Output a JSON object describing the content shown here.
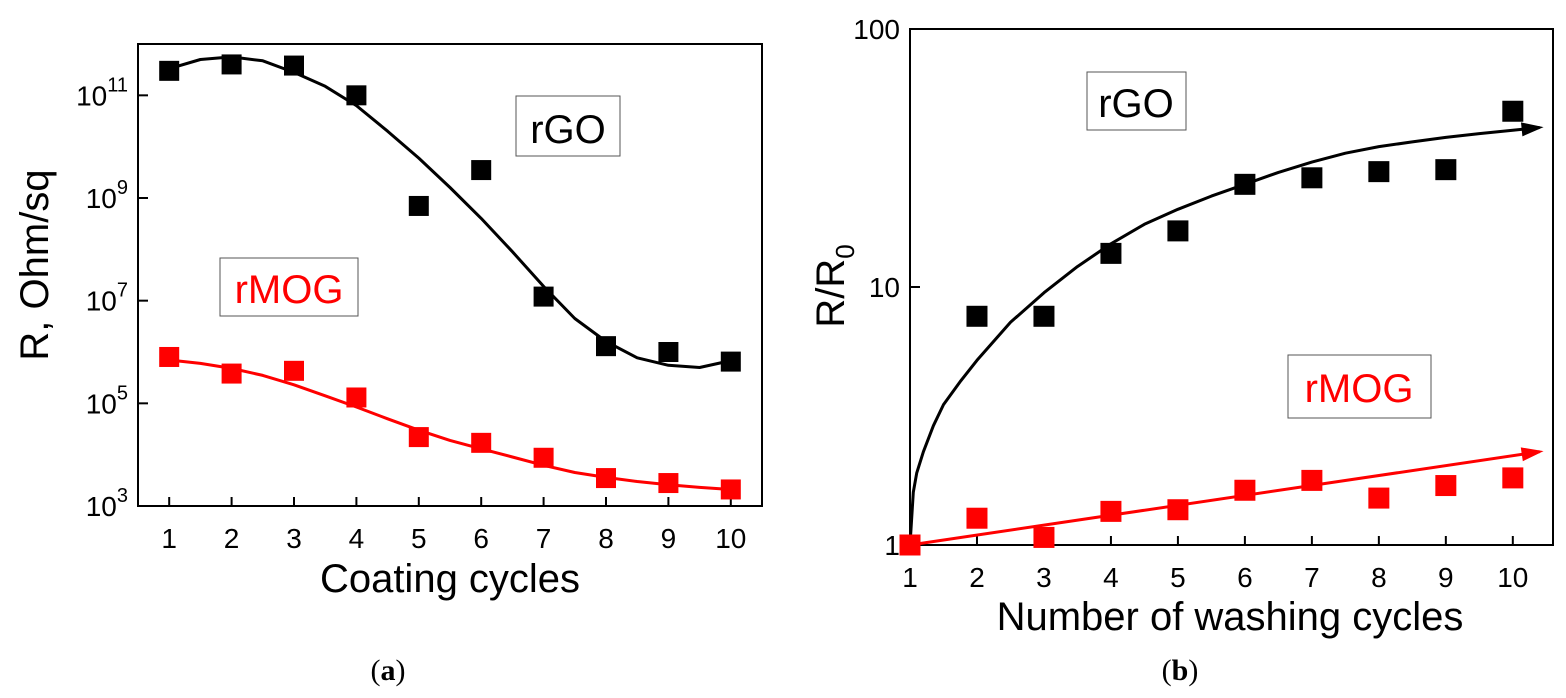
{
  "chart_data": [
    {
      "id": "a",
      "type": "scatter",
      "caption_open": "(",
      "caption_letter": "a",
      "caption_close": ")",
      "xlabel": "Coating cycles",
      "ylabel": "R, Ohm/sq",
      "yscale": "log",
      "xlim": [
        0.5,
        10.5
      ],
      "ylim": [
        1000,
        1000000000000.0
      ],
      "xticks": [
        1,
        2,
        3,
        4,
        5,
        6,
        7,
        8,
        9,
        10
      ],
      "yticks": [
        {
          "value": 1000,
          "base": "10",
          "exp": "3"
        },
        {
          "value": 100000,
          "base": "10",
          "exp": "5"
        },
        {
          "value": 10000000,
          "base": "10",
          "exp": "7"
        },
        {
          "value": 1000000000,
          "base": "10",
          "exp": "9"
        },
        {
          "value": 100000000000,
          "base": "10",
          "exp": "11"
        }
      ],
      "series": [
        {
          "name": "rGO",
          "color": "#000000",
          "x": [
            1,
            2,
            3,
            4,
            5,
            6,
            7,
            8,
            9,
            10
          ],
          "y": [
            300000000000,
            400000000000,
            380000000000,
            100000000000,
            700000000,
            3500000000,
            12000000,
            1300000,
            1000000,
            650000
          ],
          "fit_x": [
            1,
            1.5,
            2,
            2.5,
            3,
            3.5,
            4,
            4.5,
            5,
            5.5,
            6,
            6.5,
            7,
            7.5,
            8,
            8.5,
            9,
            9.5,
            10
          ],
          "fit_y": [
            330000000000,
            500000000000,
            560000000000,
            470000000000,
            280000000000,
            150000000000,
            63000000000,
            20000000000,
            6000000000,
            1600000000,
            400000000,
            90000000,
            19000000,
            4500000,
            1600000,
            770000,
            550000,
            500000,
            680000
          ]
        },
        {
          "name": "rMOG",
          "color": "#ff0000",
          "x": [
            1,
            2,
            3,
            4,
            5,
            6,
            7,
            8,
            9,
            10
          ],
          "y": [
            800000,
            380000,
            430000,
            130000,
            22000,
            17000,
            8700,
            3500,
            2800,
            2100
          ],
          "fit_x": [
            1,
            1.5,
            2,
            2.5,
            3,
            3.5,
            4,
            4.5,
            5,
            5.5,
            6,
            6.5,
            7,
            7.5,
            8,
            8.5,
            9,
            9.5,
            10
          ],
          "fit_y": [
            700000,
            600000,
            480000,
            350000,
            230000,
            140000,
            85000,
            50000,
            30000,
            19000,
            13000,
            9000,
            6200,
            4500,
            3600,
            3000,
            2600,
            2300,
            2100
          ]
        }
      ],
      "legend_labels": [
        {
          "text": "rGO",
          "color": "#000000"
        },
        {
          "text": "rMOG",
          "color": "#ff0000"
        }
      ]
    },
    {
      "id": "b",
      "type": "scatter",
      "caption_open": "(",
      "caption_letter": "b",
      "caption_close": ")",
      "xlabel": "Number of washing cycles",
      "ylabel_main": "R/R",
      "ylabel_sub": "0",
      "yscale": "log",
      "xlim": [
        1,
        10.6
      ],
      "ylim": [
        1,
        100
      ],
      "xticks": [
        1,
        2,
        3,
        4,
        5,
        6,
        7,
        8,
        9,
        10
      ],
      "yticks": [
        {
          "value": 1,
          "label": "1"
        },
        {
          "value": 10,
          "label": "10"
        },
        {
          "value": 100,
          "label": "100"
        }
      ],
      "series": [
        {
          "name": "rGO",
          "color": "#000000",
          "x": [
            1,
            2,
            3,
            4,
            5,
            6,
            7,
            8,
            9,
            10
          ],
          "y": [
            1,
            7.7,
            7.7,
            13.5,
            16.5,
            25,
            26.5,
            28,
            28.5,
            48
          ],
          "fit_x": [
            1,
            1.05,
            1.1,
            1.2,
            1.35,
            1.5,
            1.75,
            2,
            2.5,
            3,
            3.5,
            4,
            4.5,
            5,
            5.5,
            6,
            6.5,
            7,
            7.5,
            8,
            8.5,
            9,
            9.5,
            10,
            10.4
          ],
          "fit_y": [
            1,
            1.6,
            1.9,
            2.3,
            2.9,
            3.5,
            4.3,
            5.2,
            7.3,
            9.5,
            12,
            14.7,
            17.5,
            20,
            22.5,
            25,
            27.8,
            30.5,
            33,
            35,
            36.5,
            38,
            39.3,
            40.5,
            41.5
          ]
        },
        {
          "name": "rMOG",
          "color": "#ff0000",
          "x": [
            1,
            2,
            3,
            4,
            5,
            6,
            7,
            8,
            9,
            10
          ],
          "y": [
            1,
            1.27,
            1.07,
            1.35,
            1.37,
            1.63,
            1.78,
            1.52,
            1.7,
            1.82
          ],
          "fit_x": [
            1,
            10.4
          ],
          "fit_y": [
            1,
            2.3
          ]
        }
      ],
      "legend_labels": [
        {
          "text": "rGO",
          "color": "#000000"
        },
        {
          "text": "rMOG",
          "color": "#ff0000"
        }
      ]
    }
  ]
}
